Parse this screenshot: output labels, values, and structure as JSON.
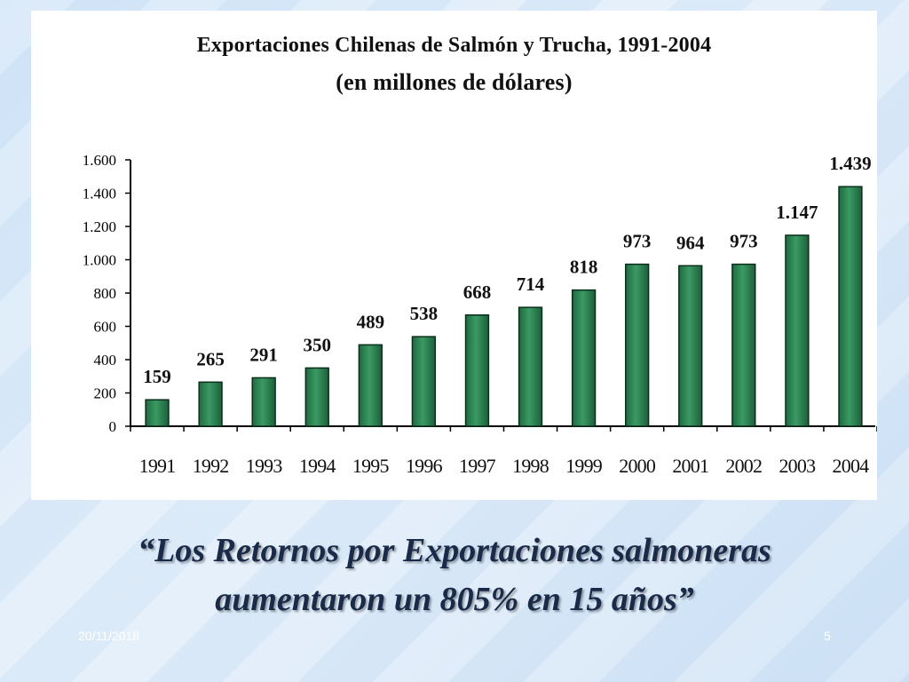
{
  "chart_data": {
    "type": "bar",
    "title": "Exportaciones Chilenas de Salmón y Trucha, 1991-2004",
    "subtitle": "(en millones de dólares)",
    "categories": [
      "1991",
      "1992",
      "1993",
      "1994",
      "1995",
      "1996",
      "1997",
      "1998",
      "1999",
      "2000",
      "2001",
      "2002",
      "2003",
      "2004"
    ],
    "values": [
      159,
      265,
      291,
      350,
      489,
      538,
      668,
      714,
      818,
      973,
      964,
      973,
      1147,
      1439
    ],
    "value_labels": [
      "159",
      "265",
      "291",
      "350",
      "489",
      "538",
      "668",
      "714",
      "818",
      "973",
      "964",
      "973",
      "1.147",
      "1.439"
    ],
    "yticks": [
      0,
      200,
      400,
      600,
      800,
      1000,
      1200,
      1400,
      1600
    ],
    "ytick_labels": [
      "0",
      "200",
      "400",
      "600",
      "800",
      "1.000",
      "1.200",
      "1.400",
      "1.600"
    ],
    "ylim": [
      0,
      1600
    ],
    "xlabel": "",
    "ylabel": "",
    "bar_color": "#2e8b57",
    "grid": false
  },
  "slide": {
    "quote_line1": "“Los Retornos por Exportaciones salmoneras",
    "quote_line2": "aumentaron un 805% en 15 años”",
    "date": "20/11/2018",
    "page_number": "5"
  }
}
